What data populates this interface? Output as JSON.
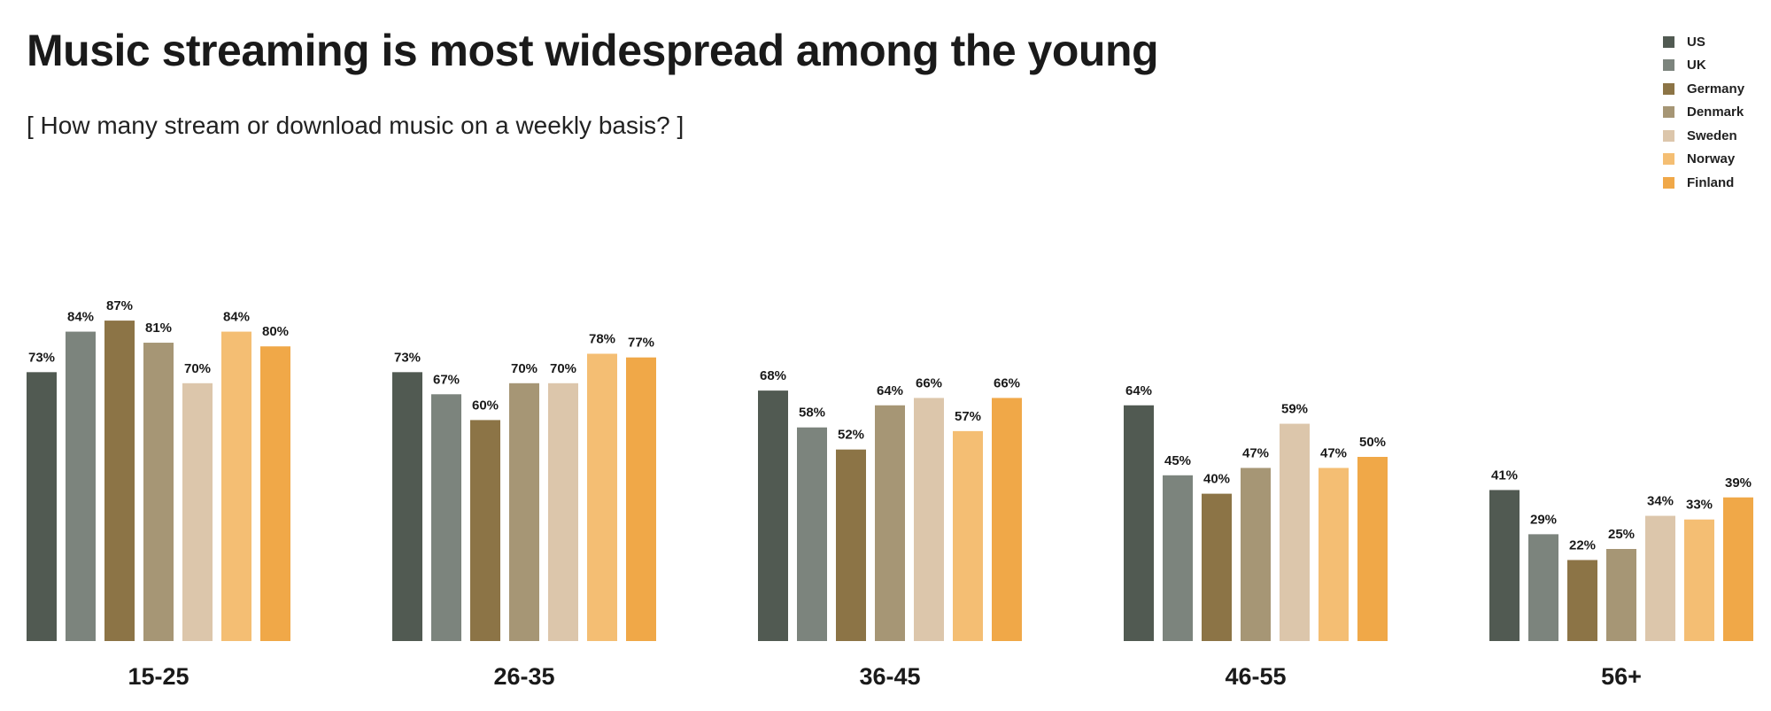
{
  "chart_data": {
    "type": "bar",
    "title": "Music streaming is most widespread among the young",
    "subtitle": "[ How many stream or download music on a weekly basis? ]",
    "categories": [
      "15-25",
      "26-35",
      "36-45",
      "46-55",
      "56+"
    ],
    "series": [
      {
        "name": "US",
        "color": "#515a52",
        "values": [
          73,
          73,
          68,
          64,
          41
        ]
      },
      {
        "name": "UK",
        "color": "#7c847d",
        "values": [
          84,
          67,
          58,
          45,
          29
        ]
      },
      {
        "name": "Germany",
        "color": "#8c7446",
        "values": [
          87,
          60,
          52,
          40,
          22
        ]
      },
      {
        "name": "Denmark",
        "color": "#a69675",
        "values": [
          81,
          70,
          64,
          47,
          25
        ]
      },
      {
        "name": "Sweden",
        "color": "#dcc6ab",
        "values": [
          70,
          70,
          66,
          59,
          34
        ]
      },
      {
        "name": "Norway",
        "color": "#f4be73",
        "values": [
          84,
          78,
          57,
          47,
          33
        ]
      },
      {
        "name": "Finland",
        "color": "#f0a848",
        "values": [
          80,
          77,
          66,
          50,
          39
        ]
      }
    ],
    "value_suffix": "%",
    "ylim": [
      0,
      100
    ],
    "grid": false,
    "legend": "top-right"
  }
}
